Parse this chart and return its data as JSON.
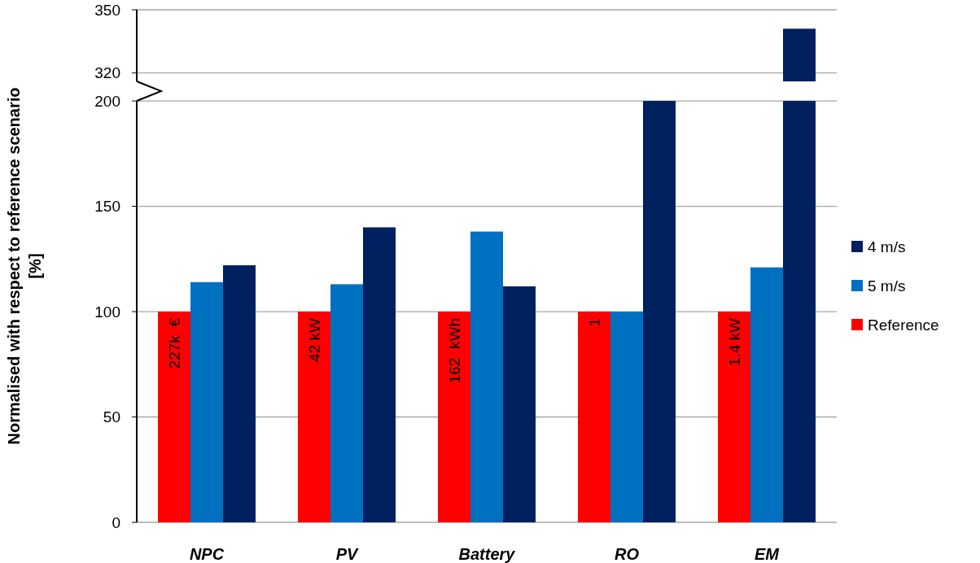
{
  "chart_data": [
    {
      "type": "bar",
      "categories": [
        null,
        null,
        null,
        null,
        null
      ],
      "series": [
        {
          "name": "4 m/s",
          "color": "#002060",
          "values": [
            null,
            null,
            null,
            null,
            341
          ]
        }
      ],
      "ylim": [
        316,
        350
      ],
      "yticks": [
        320,
        350
      ],
      "grid": "y",
      "tick_labels": "y"
    },
    {
      "type": "bar",
      "ylabel": "Normalised with respect to reference scenario [%]",
      "categories": [
        "NPC",
        "PV",
        "Battery",
        "RO",
        "EM"
      ],
      "series": [
        {
          "name": "Reference",
          "color": "#ff0000",
          "values": [
            100,
            100,
            100,
            100,
            100
          ]
        },
        {
          "name": "5 m/s",
          "color": "#0070c0",
          "values": [
            114,
            113,
            138,
            100,
            121
          ]
        },
        {
          "name": "4 m/s",
          "color": "#002060",
          "values": [
            122,
            140,
            112,
            200,
            200
          ]
        }
      ],
      "annotations": [
        "227k  €",
        "42 kW",
        "162  kWh",
        "1",
        "1.4 kW"
      ],
      "ylim": [
        0,
        200
      ],
      "yticks": [
        0,
        50,
        100,
        150,
        200
      ],
      "grid": "y",
      "legend": "right"
    }
  ]
}
